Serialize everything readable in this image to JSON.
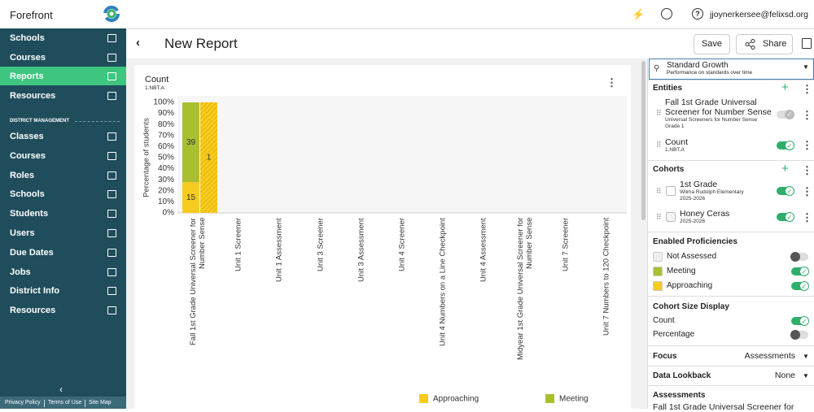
{
  "app": {
    "brand": "Forefront",
    "user": "jjoynerkersee@felixsd.org"
  },
  "nav": {
    "items": [
      "Schools",
      "Courses",
      "Reports",
      "Resources"
    ],
    "active": 2,
    "section": "DISTRICT MANAGEMENT",
    "district_items": [
      "Classes",
      "Courses",
      "Roles",
      "Schools",
      "Students",
      "Users",
      "Due Dates",
      "Jobs",
      "District Info",
      "Resources"
    ],
    "footer": [
      "Privacy Policy",
      "Terms of Use",
      "Site Map"
    ]
  },
  "report": {
    "title": "New Report",
    "save": "Save",
    "share": "Share"
  },
  "panel": {
    "report_type": {
      "title": "Standard Growth",
      "subtitle": "Performance on standards over time"
    },
    "entities": {
      "heading": "Entities",
      "items": [
        {
          "title": "Fall 1st Grade Universal Screener for Number Sense",
          "lines": [
            "Universal Screeners for Number Sense",
            "Grade 1"
          ],
          "on": true,
          "disabled": true
        },
        {
          "title": "Count",
          "lines": [
            "1.NBT.A"
          ],
          "on": true,
          "disabled": false
        }
      ]
    },
    "cohorts": {
      "heading": "Cohorts",
      "items": [
        {
          "title": "1st Grade",
          "lines": [
            "Wilma Rudolph Elementary",
            "2025-2026"
          ],
          "on": true,
          "pattern": "solid"
        },
        {
          "title": "Honey Ceras",
          "lines": [
            "2025-2026"
          ],
          "on": true,
          "pattern": "hatched"
        }
      ]
    },
    "proficiencies": {
      "heading": "Enabled Proficiencies",
      "items": [
        {
          "name": "Not Assessed",
          "color": "#eeeeee",
          "on": false
        },
        {
          "name": "Meeting",
          "color": "#a9bf2e",
          "on": true
        },
        {
          "name": "Approaching",
          "color": "#f7cb1f",
          "on": true
        }
      ]
    },
    "cohort_size": {
      "heading": "Cohort Size Display",
      "items": [
        {
          "name": "Count",
          "on": true
        },
        {
          "name": "Percentage",
          "on": false
        }
      ]
    },
    "focus": {
      "label": "Focus",
      "value": "Assessments"
    },
    "lookback": {
      "label": "Data Lookback",
      "value": "None"
    },
    "assessments": {
      "heading": "Assessments",
      "first": "Fall 1st Grade Universal Screener for"
    }
  },
  "chart_data": {
    "type": "bar",
    "stacking": "percent",
    "title": "Count",
    "subtitle": "1.NBT.A",
    "ylabel": "Percentage of students",
    "categories": [
      "Fall 1st Grade Universal Screener for Number Sense",
      "Unit 1 Screener",
      "Unit 1 Assessment",
      "Unit 3 Screener",
      "Unit 3 Assessment",
      "Unit 4 Screener",
      "Unit 4 Numbers on a Line Checkpoint",
      "Unit 4 Assessment",
      "Midyear 1st Grade Universal Screener for Number Sense",
      "Unit 7 Screener",
      "Unit 7 Numbers to 120 Checkpoint"
    ],
    "cohort_patterns": [
      "solid",
      "hatched"
    ],
    "series": [
      {
        "name": "Approaching",
        "color": "#f7cb1f",
        "values": [
          [
            15,
            1
          ],
          null,
          null,
          null,
          null,
          null,
          null,
          null,
          null,
          null,
          null
        ]
      },
      {
        "name": "Meeting",
        "color": "#a9bf2e",
        "values": [
          [
            39,
            0
          ],
          null,
          null,
          null,
          null,
          null,
          null,
          null,
          null,
          null,
          null
        ]
      }
    ],
    "ylim": [
      0,
      100
    ],
    "yticks": [
      {
        "value": 0,
        "label": "0%"
      },
      {
        "value": 10,
        "label": "10%"
      },
      {
        "value": 20,
        "label": "20%"
      },
      {
        "value": 30,
        "label": "30%"
      },
      {
        "value": 40,
        "label": "40%"
      },
      {
        "value": 50,
        "label": "50%"
      },
      {
        "value": 60,
        "label": "60%"
      },
      {
        "value": 70,
        "label": "70%"
      },
      {
        "value": 80,
        "label": "80%"
      },
      {
        "value": 90,
        "label": "90%"
      },
      {
        "value": 100,
        "label": "100%"
      }
    ],
    "grid": false,
    "legend": "bottom"
  }
}
